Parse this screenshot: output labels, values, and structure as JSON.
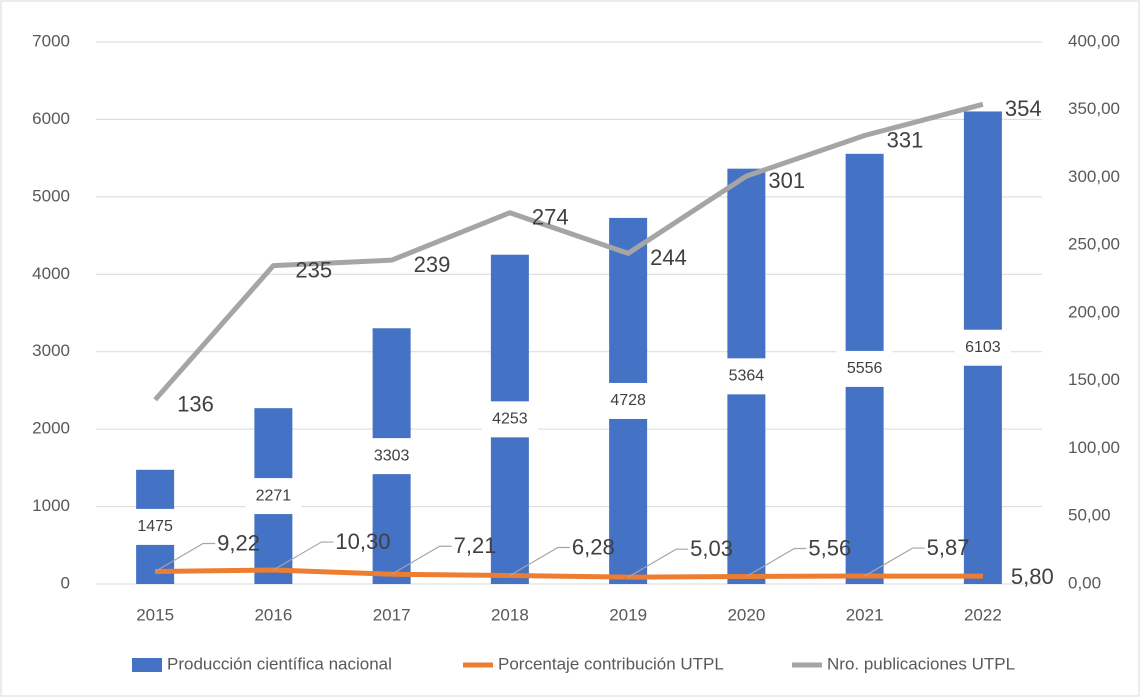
{
  "chart_data": {
    "type": "bar-line",
    "categories": [
      "2015",
      "2016",
      "2017",
      "2018",
      "2019",
      "2020",
      "2021",
      "2022"
    ],
    "series": [
      {
        "name": "Producción científica nacional",
        "color": "#4472c4",
        "type": "bar",
        "values": [
          1475,
          2271,
          3303,
          4253,
          4728,
          5364,
          5556,
          6103
        ]
      },
      {
        "name": "Porcentaje contribución UTPL",
        "color": "#ed7d31",
        "type": "line",
        "axis": "y2",
        "values": [
          9.22,
          10.3,
          7.21,
          6.28,
          5.03,
          5.56,
          5.87,
          5.8
        ],
        "value_labels": [
          "9,22",
          "10,30",
          "7,21",
          "6,28",
          "5,03",
          "5,56",
          "5,87",
          "5,80"
        ]
      },
      {
        "name": "Nro. publicaciones UTPL",
        "color": "#a5a5a5",
        "type": "line",
        "axis": "y2",
        "values": [
          136,
          235,
          239,
          274,
          244,
          301,
          331,
          354
        ]
      }
    ],
    "ylim": [
      0,
      7000
    ],
    "yticks": [
      0,
      1000,
      2000,
      3000,
      4000,
      5000,
      6000,
      7000
    ],
    "y2lim": [
      0,
      400
    ],
    "y2ticks": [
      {
        "value": 0,
        "label": "0,00"
      },
      {
        "value": 50,
        "label": "50,00"
      },
      {
        "value": 100,
        "label": "100,00"
      },
      {
        "value": 150,
        "label": "150,00"
      },
      {
        "value": 200,
        "label": "200,00"
      },
      {
        "value": 250,
        "label": "250,00"
      },
      {
        "value": 300,
        "label": "300,00"
      },
      {
        "value": 350,
        "label": "350,00"
      },
      {
        "value": 400,
        "label": "400,00"
      }
    ],
    "grid": true,
    "legend": "bottom"
  }
}
